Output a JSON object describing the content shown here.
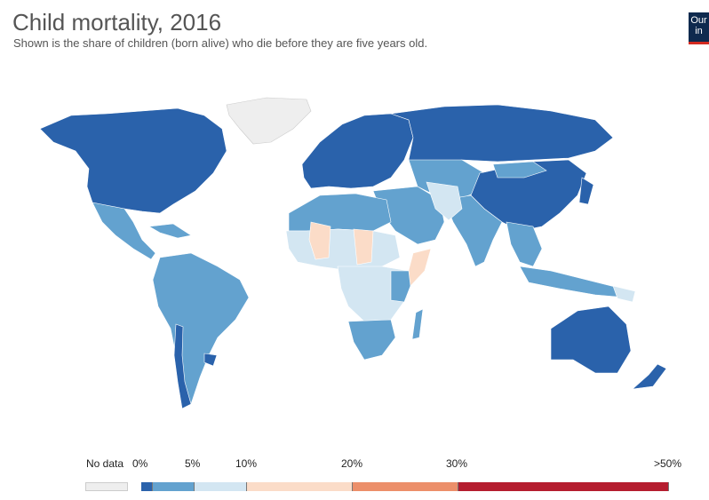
{
  "header": {
    "title": "Child mortality, 2016",
    "subtitle": "Shown is the share of children (born alive) who die before they are five years old."
  },
  "logo": {
    "line1": "Our",
    "line2": "in"
  },
  "colors": {
    "no_data": "#eeeeee",
    "bin_0_2": "#2a62ab",
    "bin_2_5": "#63a2cf",
    "bin_5_10": "#d3e6f2",
    "bin_10_20": "#fbdcc8",
    "bin_20_30": "#ec8f6a",
    "bin_30_50": "#b51d2f"
  },
  "legend": {
    "no_data_label": "No data",
    "ticks": [
      "0%",
      "5%",
      "10%",
      "20%",
      "30%",
      ">50%"
    ]
  }
}
